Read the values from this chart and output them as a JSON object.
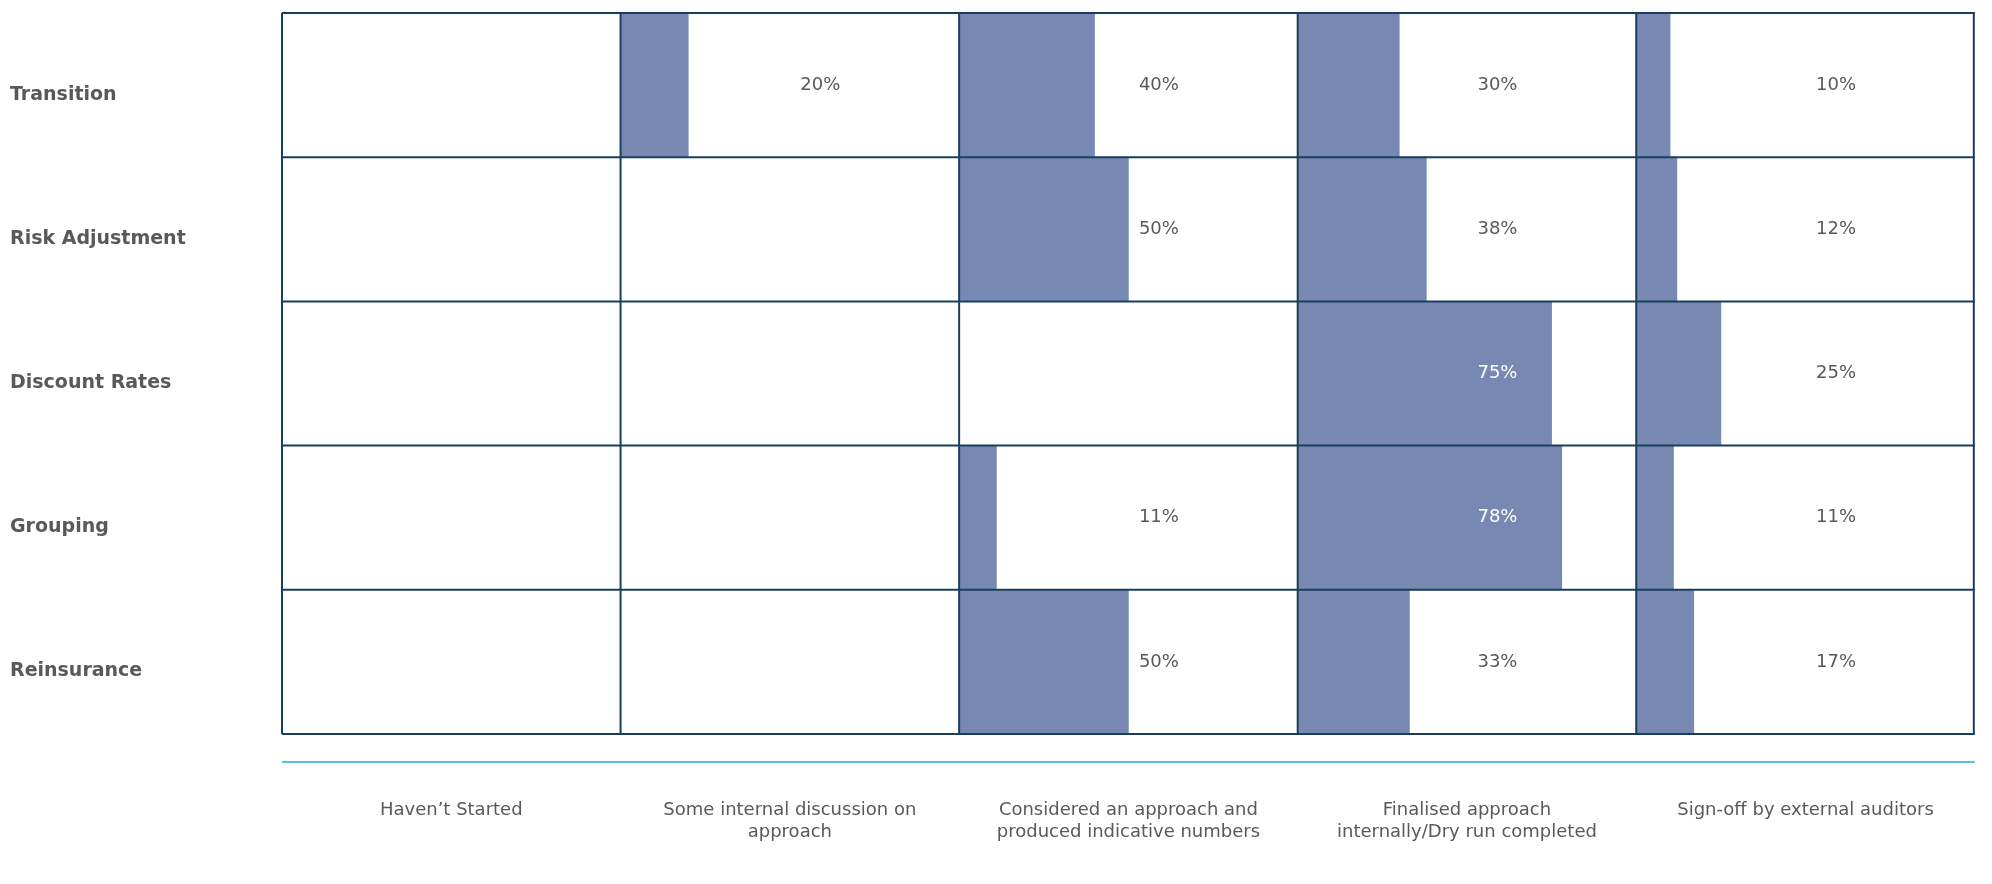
{
  "chart_data": {
    "type": "heatmap",
    "categories": [
      "Haven’t Started",
      "Some internal discussion on approach",
      "Considered an approach and produced indicative numbers",
      "Finalised approach internally/Dry run completed",
      "Sign-off by external auditors"
    ],
    "y_categories": [
      "Transition",
      "Risk Adjustment",
      "Discount Rates",
      "Grouping",
      "Reinsurance"
    ],
    "cells": [
      [
        null,
        20,
        40,
        30,
        10
      ],
      [
        null,
        null,
        50,
        38,
        12
      ],
      [
        null,
        null,
        null,
        75,
        25
      ],
      [
        null,
        null,
        11,
        78,
        11
      ],
      [
        null,
        null,
        50,
        33,
        17
      ]
    ],
    "cell_labels": [
      [
        null,
        "20%",
        "40%",
        "30%",
        "10%"
      ],
      [
        null,
        null,
        "50%",
        "38%",
        "12%"
      ],
      [
        null,
        null,
        null,
        "75%",
        "25%"
      ],
      [
        null,
        null,
        "11%",
        "78%",
        "11%"
      ],
      [
        null,
        null,
        "50%",
        "33%",
        "17%"
      ]
    ],
    "color": "#7788b3",
    "grid": true
  }
}
